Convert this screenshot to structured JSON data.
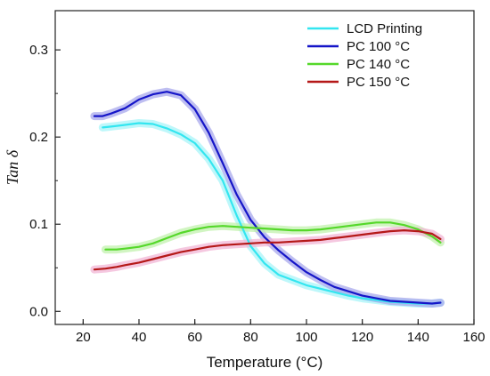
{
  "chart_data": {
    "type": "line",
    "title": "",
    "xlabel": "Temperature (°C)",
    "ylabel": "Tan δ",
    "xlim": [
      10,
      160
    ],
    "ylim": [
      -0.015,
      0.345
    ],
    "xticks": [
      20,
      40,
      60,
      80,
      100,
      120,
      140,
      160
    ],
    "xtick_labels": [
      "20",
      "40",
      "60",
      "80",
      "100",
      "120",
      "140",
      "160"
    ],
    "yticks": [
      0.0,
      0.1,
      0.2,
      0.3
    ],
    "ytick_labels": [
      "0.0",
      "0.1",
      "0.2",
      "0.3"
    ],
    "grid": false,
    "legend_position": "top-right",
    "series": [
      {
        "name": "LCD Printing",
        "color": "#33e6f0",
        "band_color": "#a8f4f8",
        "x": [
          27,
          30,
          35,
          40,
          45,
          50,
          55,
          60,
          65,
          70,
          75,
          80,
          85,
          90,
          95,
          100,
          105,
          110,
          115,
          120,
          125,
          130,
          135,
          140,
          145,
          148
        ],
        "y": [
          0.211,
          0.212,
          0.214,
          0.216,
          0.215,
          0.21,
          0.203,
          0.193,
          0.175,
          0.15,
          0.11,
          0.075,
          0.055,
          0.042,
          0.036,
          0.03,
          0.026,
          0.022,
          0.018,
          0.015,
          0.013,
          0.011,
          0.01,
          0.009,
          0.009,
          0.01
        ]
      },
      {
        "name": "PC 100 °C",
        "color": "#1515c8",
        "band_color": "#a8a8ec",
        "x": [
          24,
          27,
          30,
          35,
          40,
          45,
          50,
          55,
          60,
          65,
          70,
          75,
          80,
          85,
          90,
          95,
          100,
          105,
          110,
          115,
          120,
          125,
          130,
          135,
          140,
          145,
          148
        ],
        "y": [
          0.224,
          0.224,
          0.227,
          0.233,
          0.243,
          0.249,
          0.252,
          0.248,
          0.232,
          0.205,
          0.17,
          0.134,
          0.105,
          0.085,
          0.07,
          0.057,
          0.045,
          0.036,
          0.028,
          0.023,
          0.018,
          0.015,
          0.012,
          0.011,
          0.01,
          0.009,
          0.01
        ]
      },
      {
        "name": "PC 140 °C",
        "color": "#55d82a",
        "band_color": "#c2f2ad",
        "x": [
          28,
          32,
          35,
          40,
          45,
          50,
          55,
          60,
          65,
          70,
          75,
          80,
          85,
          90,
          95,
          100,
          105,
          110,
          115,
          120,
          125,
          130,
          135,
          140,
          145,
          148
        ],
        "y": [
          0.071,
          0.071,
          0.072,
          0.074,
          0.078,
          0.084,
          0.09,
          0.094,
          0.097,
          0.098,
          0.097,
          0.096,
          0.095,
          0.094,
          0.093,
          0.093,
          0.094,
          0.096,
          0.098,
          0.1,
          0.102,
          0.102,
          0.099,
          0.094,
          0.086,
          0.079
        ]
      },
      {
        "name": "PC 150 °C",
        "color": "#b51818",
        "band_color": "#f2b5d6",
        "x": [
          24,
          28,
          32,
          35,
          40,
          45,
          50,
          55,
          60,
          65,
          70,
          75,
          80,
          85,
          90,
          95,
          100,
          105,
          110,
          115,
          120,
          125,
          130,
          135,
          140,
          145,
          148
        ],
        "y": [
          0.048,
          0.049,
          0.051,
          0.053,
          0.056,
          0.06,
          0.064,
          0.068,
          0.071,
          0.074,
          0.076,
          0.077,
          0.078,
          0.079,
          0.079,
          0.08,
          0.081,
          0.082,
          0.084,
          0.086,
          0.088,
          0.09,
          0.092,
          0.093,
          0.092,
          0.089,
          0.083
        ]
      }
    ]
  }
}
